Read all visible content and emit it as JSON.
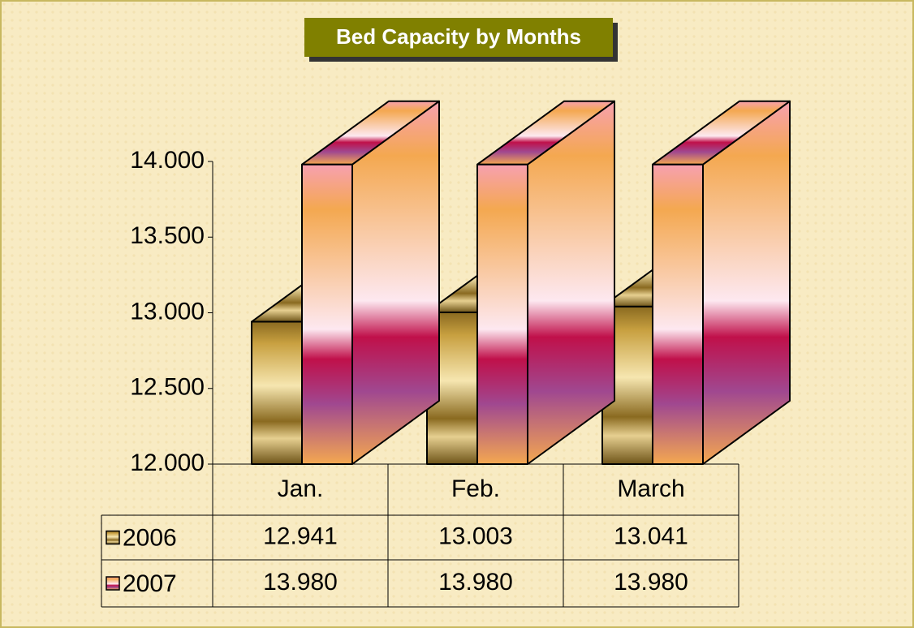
{
  "chart_data": {
    "type": "bar3d",
    "title": "Bed Capacity by Months",
    "categories": [
      "Jan.",
      "Feb.",
      "March"
    ],
    "series": [
      {
        "name": "2006",
        "color": "#c8a040",
        "values": [
          12941,
          13003,
          13041
        ],
        "value_labels": [
          "12.941",
          "13.003",
          "13.041"
        ]
      },
      {
        "name": "2007",
        "color": "#f4a850",
        "values": [
          13980,
          13980,
          13980
        ],
        "value_labels": [
          "13.980",
          "13.980",
          "13.980"
        ]
      }
    ],
    "ylim": [
      12000,
      14000
    ],
    "yticks": [
      {
        "value": 12000,
        "label": "12.000"
      },
      {
        "value": 12500,
        "label": "12.500"
      },
      {
        "value": 13000,
        "label": "13.000"
      },
      {
        "value": 13500,
        "label": "13.500"
      },
      {
        "value": 14000,
        "label": "14.000"
      }
    ],
    "grid": false
  }
}
